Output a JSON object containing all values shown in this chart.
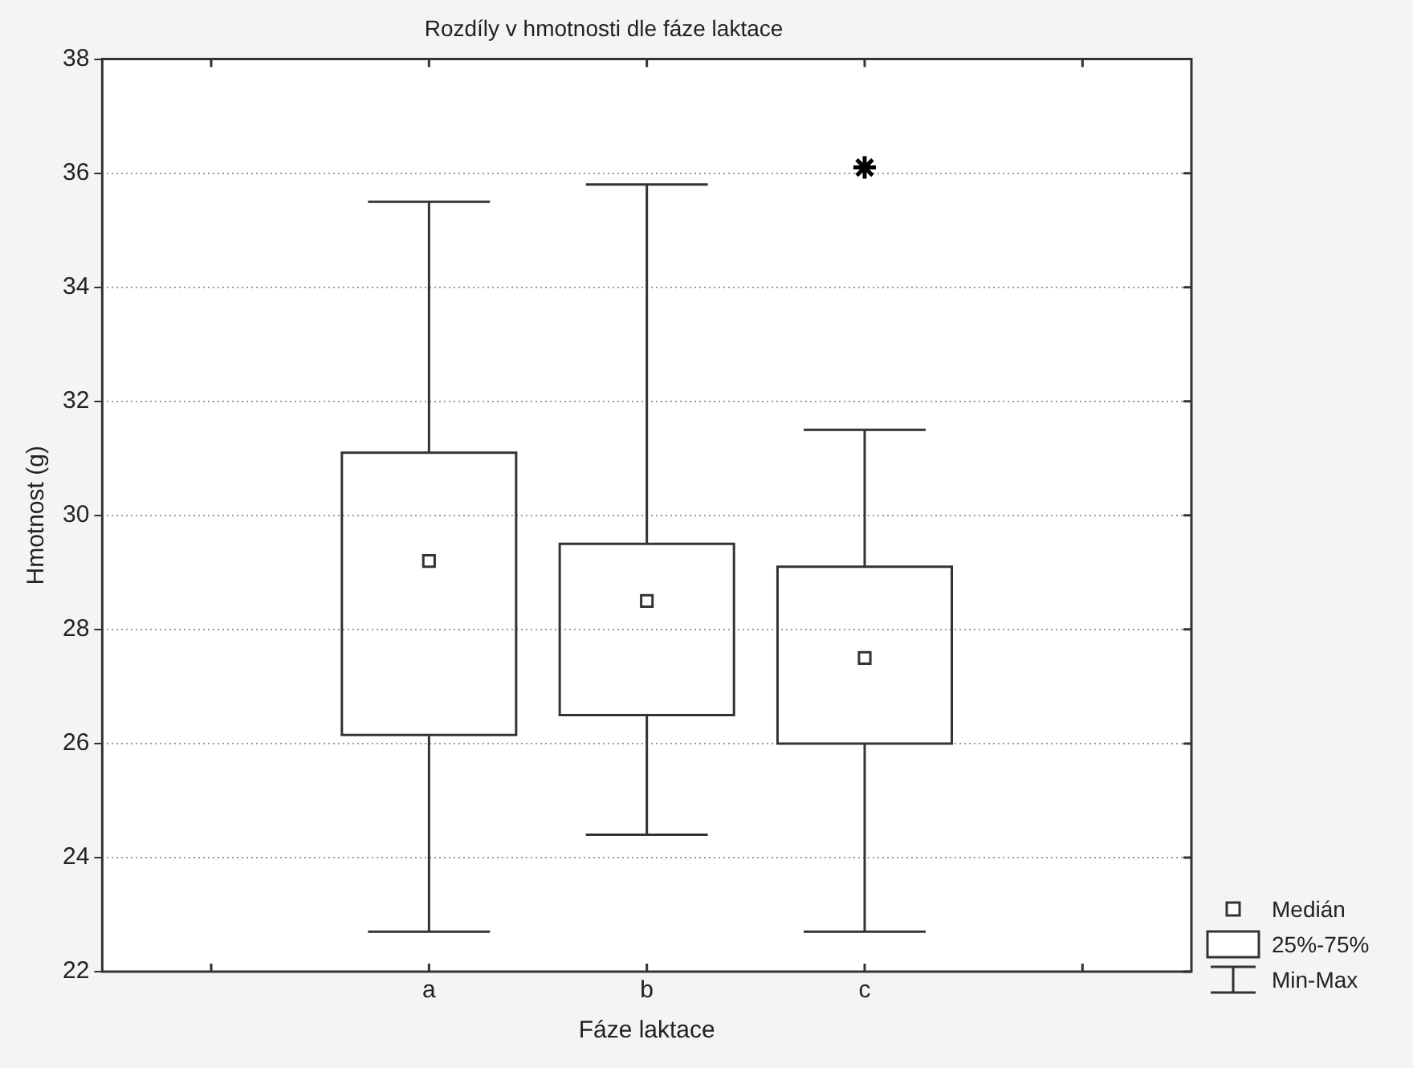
{
  "chart_data": {
    "type": "box",
    "title": "Rozdíly v hmotnosti dle fáze laktace",
    "xlabel": "Fáze laktace",
    "ylabel": "Hmotnost (g)",
    "categories": [
      null,
      "a",
      "b",
      "c",
      null
    ],
    "boxes": [
      null,
      {
        "low": 22.7,
        "q1": 26.15,
        "median": 29.2,
        "q3": 31.1,
        "high": 35.5
      },
      {
        "low": 24.4,
        "q1": 26.5,
        "median": 28.5,
        "q3": 29.5,
        "high": 35.8
      },
      {
        "low": 22.7,
        "q1": 26.0,
        "median": 27.5,
        "q3": 29.1,
        "high": 31.5,
        "outliers": [
          36.1
        ]
      },
      null
    ],
    "color": "#333333",
    "ylim": [
      22,
      38
    ],
    "yticks": [
      22,
      24,
      26,
      28,
      30,
      32,
      34,
      36,
      38
    ],
    "grid": "y",
    "marker": "square",
    "annotations": [
      "Medián",
      "25%-75%",
      "Min-Max"
    ]
  }
}
